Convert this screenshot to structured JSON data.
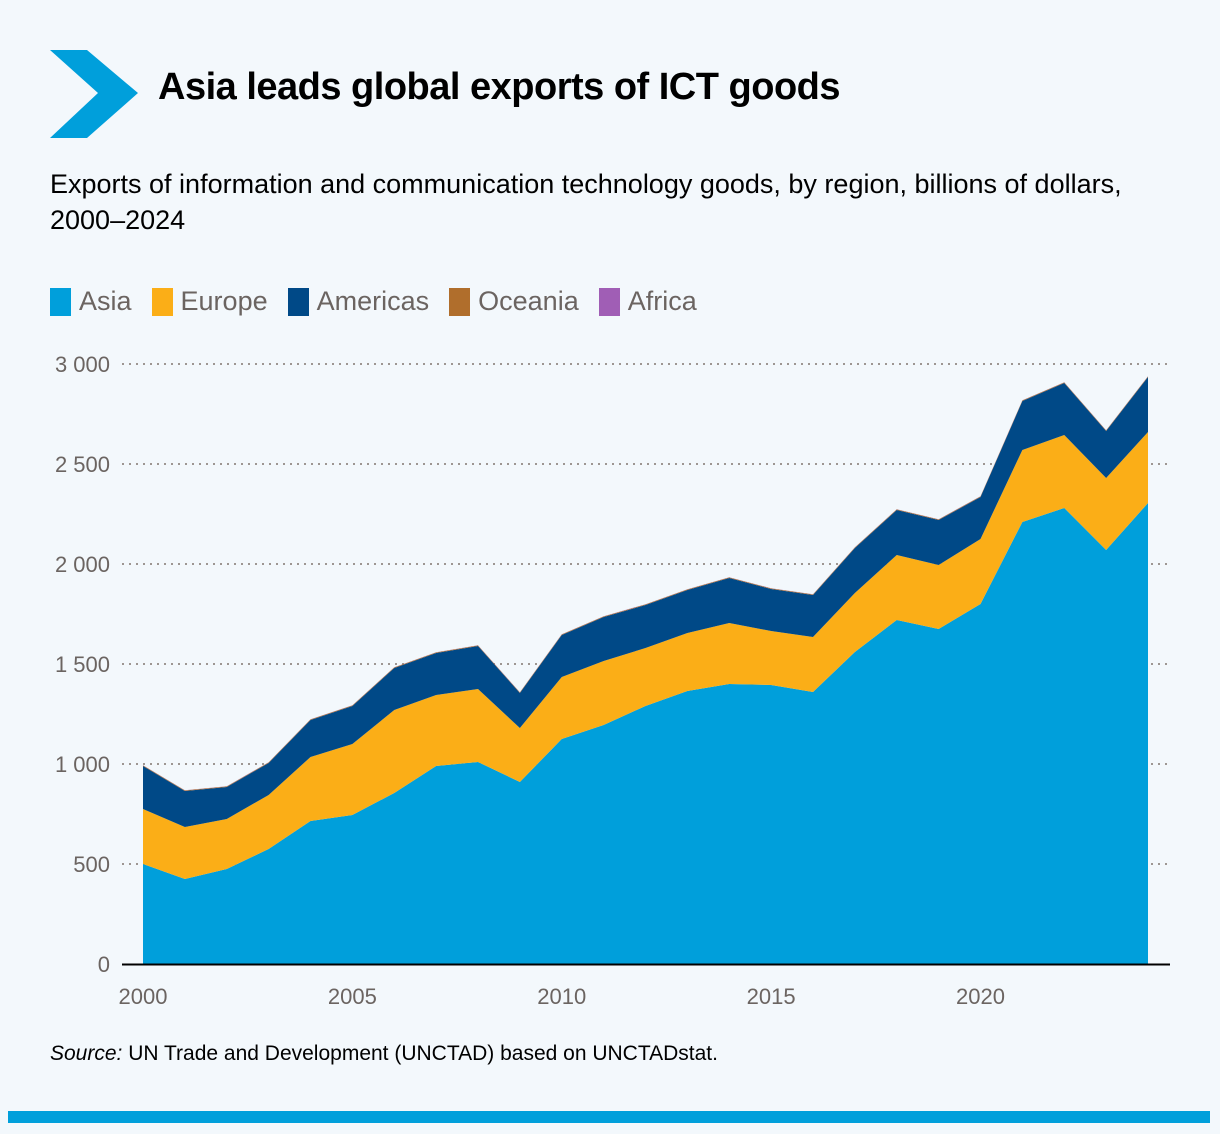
{
  "header": {
    "title": "Asia leads global exports of ICT goods",
    "subtitle": "Exports of information and communication technology goods, by region, billions of dollars, 2000–2024",
    "icon": "chevron-right-icon",
    "accent": "#009fdb"
  },
  "source": {
    "label": "Source:",
    "text": " UN Trade and Development (UNCTAD) based on UNCTADstat."
  },
  "chart_data": {
    "type": "area",
    "stacked": true,
    "title": "Asia leads global exports of ICT goods",
    "subtitle": "Exports of information and communication technology goods, by region, billions of dollars, 2000–2024",
    "xlabel": "",
    "ylabel": "",
    "ylim": [
      0,
      3000
    ],
    "yticks": [
      0,
      500,
      1000,
      1500,
      2000,
      2500,
      3000
    ],
    "ytick_labels": [
      "0",
      "500",
      "1 000",
      "1 500",
      "2 000",
      "2 500",
      "3 000"
    ],
    "xticks": [
      2000,
      2005,
      2010,
      2015,
      2020
    ],
    "xtick_labels": [
      "2000",
      "2005",
      "2010",
      "2015",
      "2020"
    ],
    "grid": "horizontal dotted",
    "legend_position": "top-left",
    "x": [
      2000,
      2001,
      2002,
      2003,
      2004,
      2005,
      2006,
      2007,
      2008,
      2009,
      2010,
      2011,
      2012,
      2013,
      2014,
      2015,
      2016,
      2017,
      2018,
      2019,
      2020,
      2021,
      2022,
      2023,
      2024
    ],
    "series": [
      {
        "name": "Asia",
        "color": "#009fdb",
        "values": [
          500,
          425,
          475,
          575,
          715,
          745,
          855,
          990,
          1010,
          910,
          1125,
          1195,
          1290,
          1365,
          1400,
          1395,
          1360,
          1560,
          1720,
          1675,
          1800,
          2210,
          2280,
          2070,
          2305
        ]
      },
      {
        "name": "Europe",
        "color": "#fbae17",
        "values": [
          275,
          260,
          250,
          270,
          320,
          355,
          415,
          355,
          365,
          270,
          310,
          320,
          290,
          290,
          305,
          270,
          275,
          295,
          325,
          320,
          325,
          360,
          365,
          360,
          355
        ]
      },
      {
        "name": "Americas",
        "color": "#004987",
        "values": [
          215,
          180,
          160,
          160,
          185,
          190,
          210,
          210,
          215,
          175,
          210,
          220,
          215,
          215,
          225,
          210,
          210,
          225,
          225,
          225,
          210,
          245,
          260,
          235,
          275
        ]
      },
      {
        "name": "Oceania",
        "color": "#b06e2c",
        "values": [
          3,
          3,
          3,
          3,
          3,
          3,
          3,
          3,
          3,
          3,
          3,
          3,
          3,
          3,
          3,
          3,
          3,
          3,
          3,
          3,
          3,
          3,
          3,
          3,
          3
        ]
      },
      {
        "name": "Africa",
        "color": "#a05eb5",
        "values": [
          1,
          1,
          1,
          1,
          1,
          1,
          1,
          1,
          1,
          1,
          1,
          1,
          1,
          1,
          1,
          1,
          1,
          1,
          1,
          1,
          1,
          1,
          1,
          1,
          1
        ]
      }
    ]
  }
}
